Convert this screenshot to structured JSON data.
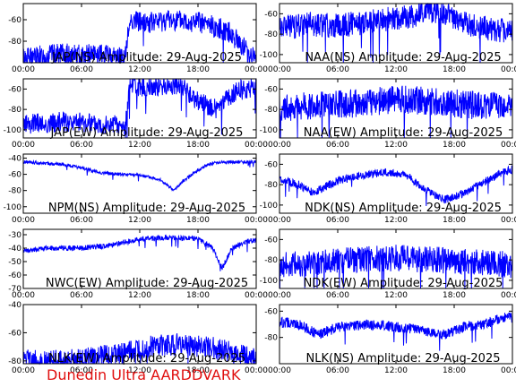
{
  "footer": {
    "text": "Dunedin Ultra AARDDVARK"
  },
  "style": {
    "trace_color": "#0000ff",
    "footer_color": "#e01010",
    "axis_color": "#000000"
  },
  "chart_data": [
    {
      "type": "line",
      "title": "JAP(NS) Amplitude: 29-Aug-2025",
      "xticks": [
        "00:00",
        "06:00",
        "12:00",
        "18:00",
        "00:00"
      ],
      "xlim": [
        0,
        24
      ],
      "yticks": [
        -80,
        -60
      ],
      "ylim": [
        -100,
        -45
      ],
      "series": [
        {
          "x": [
            0,
            4,
            8,
            10.5,
            11,
            13,
            15,
            18,
            21,
            24
          ],
          "y": [
            -95,
            -92,
            -93,
            -95,
            -60,
            -63,
            -60,
            -62,
            -70,
            -97
          ],
          "noise": 10
        }
      ]
    },
    {
      "type": "line",
      "title": "NAA(NS) Amplitude: 29-Aug-2025",
      "xticks": [
        "00:00",
        "06:00",
        "12:00",
        "18:00",
        "00:00"
      ],
      "xlim": [
        0,
        24
      ],
      "yticks": [
        -100,
        -80,
        -60
      ],
      "ylim": [
        -108,
        -50
      ],
      "series": [
        {
          "x": [
            0,
            3,
            6,
            9,
            12,
            14,
            15,
            17,
            20,
            24
          ],
          "y": [
            -75,
            -70,
            -72,
            -68,
            -64,
            -62,
            -55,
            -60,
            -72,
            -78
          ],
          "noise": 12
        }
      ]
    },
    {
      "type": "line",
      "title": "JAP(EW) Amplitude: 29-Aug-2025",
      "xticks": [
        "00:00",
        "06:00",
        "12:00",
        "18:00",
        "00:00"
      ],
      "xlim": [
        0,
        24
      ],
      "yticks": [
        -100,
        -80,
        -60
      ],
      "ylim": [
        -108,
        -50
      ],
      "series": [
        {
          "x": [
            0,
            4,
            8,
            10.5,
            11,
            13,
            16,
            18,
            20,
            22,
            23.5
          ],
          "y": [
            -95,
            -92,
            -94,
            -97,
            -58,
            -58,
            -56,
            -72,
            -80,
            -62,
            -58
          ],
          "noise": 10
        }
      ]
    },
    {
      "type": "line",
      "title": "NAA(EW) Amplitude: 29-Aug-2025",
      "xticks": [
        "00:00",
        "06:00",
        "12:00",
        "18:00",
        "00:00"
      ],
      "xlim": [
        0,
        24
      ],
      "yticks": [
        -100,
        -80,
        -60
      ],
      "ylim": [
        -108,
        -50
      ],
      "series": [
        {
          "x": [
            0,
            4,
            8,
            12,
            16,
            20,
            24
          ],
          "y": [
            -78,
            -76,
            -74,
            -70,
            -72,
            -76,
            -78
          ],
          "noise": 14
        }
      ]
    },
    {
      "type": "line",
      "title": "NPM(NS) Amplitude: 29-Aug-2025",
      "xticks": [
        "00:00",
        "06:00",
        "12:00",
        "18:00",
        "00:00"
      ],
      "xlim": [
        0,
        24
      ],
      "yticks": [
        -100,
        -80,
        -60,
        -40
      ],
      "ylim": [
        -108,
        -35
      ],
      "series": [
        {
          "x": [
            0,
            2,
            4,
            6,
            8,
            10,
            12,
            14,
            15.5,
            16.5,
            18,
            19,
            20,
            22,
            24
          ],
          "y": [
            -45,
            -46,
            -48,
            -52,
            -58,
            -60,
            -61,
            -66,
            -80,
            -68,
            -55,
            -48,
            -45,
            -45,
            -45
          ],
          "noise": 2
        }
      ]
    },
    {
      "type": "line",
      "title": "NDK(NS) Amplitude: 29-Aug-2025",
      "xticks": [
        "00:00",
        "06:00",
        "12:00",
        "18:00",
        "00:00"
      ],
      "xlim": [
        0,
        24
      ],
      "yticks": [
        -100,
        -80,
        -60
      ],
      "ylim": [
        -108,
        -50
      ],
      "series": [
        {
          "x": [
            0,
            2,
            3.5,
            6,
            9,
            11,
            13,
            15,
            17,
            19,
            21,
            23,
            24
          ],
          "y": [
            -75,
            -80,
            -88,
            -76,
            -70,
            -68,
            -70,
            -85,
            -95,
            -88,
            -78,
            -68,
            -65
          ],
          "noise": 4
        }
      ]
    },
    {
      "type": "line",
      "title": "NWC(EW) Amplitude: 29-Aug-2025",
      "xticks": [
        "00:00",
        "06:00",
        "12:00",
        "18:00",
        "00:00"
      ],
      "xlim": [
        0,
        24
      ],
      "yticks": [
        -70,
        -60,
        -50,
        -40,
        -30
      ],
      "ylim": [
        -70,
        -26
      ],
      "series": [
        {
          "x": [
            0,
            3,
            6,
            9,
            12,
            15,
            18,
            19.5,
            20.5,
            21.5,
            23,
            24
          ],
          "y": [
            -42,
            -40,
            -40,
            -38,
            -33,
            -32,
            -33,
            -40,
            -55,
            -40,
            -35,
            -34
          ],
          "noise": 2
        }
      ]
    },
    {
      "type": "line",
      "title": "NDK(EW) Amplitude: 29-Aug-2025",
      "xticks": [
        "00:00",
        "06:00",
        "12:00",
        "18:00",
        "00:00"
      ],
      "xlim": [
        0,
        24
      ],
      "yticks": [
        -100,
        -80,
        -60
      ],
      "ylim": [
        -108,
        -50
      ],
      "series": [
        {
          "x": [
            0,
            4,
            8,
            12,
            16,
            20,
            24
          ],
          "y": [
            -85,
            -82,
            -80,
            -78,
            -80,
            -82,
            -85
          ],
          "noise": 13
        }
      ]
    },
    {
      "type": "line",
      "title": "NLK(EW) Amplitude: 29-Aug-2025",
      "xticks": [
        "00:00",
        "06:00",
        "12:00",
        "18:00",
        "00:00"
      ],
      "xlim": [
        0,
        24
      ],
      "yticks": [
        -80,
        -60,
        -40
      ],
      "ylim": [
        -82,
        -40
      ],
      "series": [
        {
          "x": [
            0,
            4,
            7,
            10,
            13,
            16,
            19,
            22,
            24
          ],
          "y": [
            -80,
            -80,
            -78,
            -75,
            -70,
            -68,
            -70,
            -75,
            -78
          ],
          "noise": 8
        }
      ]
    },
    {
      "type": "line",
      "title": "NLK(NS) Amplitude: 29-Aug-2025",
      "xticks": [
        "00:00",
        "06:00",
        "12:00",
        "18:00",
        "00:00"
      ],
      "xlim": [
        0,
        24
      ],
      "yticks": [
        -80,
        -60
      ],
      "ylim": [
        -100,
        -55
      ],
      "series": [
        {
          "x": [
            0,
            2,
            4,
            6,
            9,
            12,
            15,
            17,
            19,
            21,
            23,
            24
          ],
          "y": [
            -68,
            -70,
            -78,
            -72,
            -70,
            -72,
            -75,
            -78,
            -72,
            -70,
            -65,
            -65
          ],
          "noise": 4
        }
      ]
    }
  ]
}
